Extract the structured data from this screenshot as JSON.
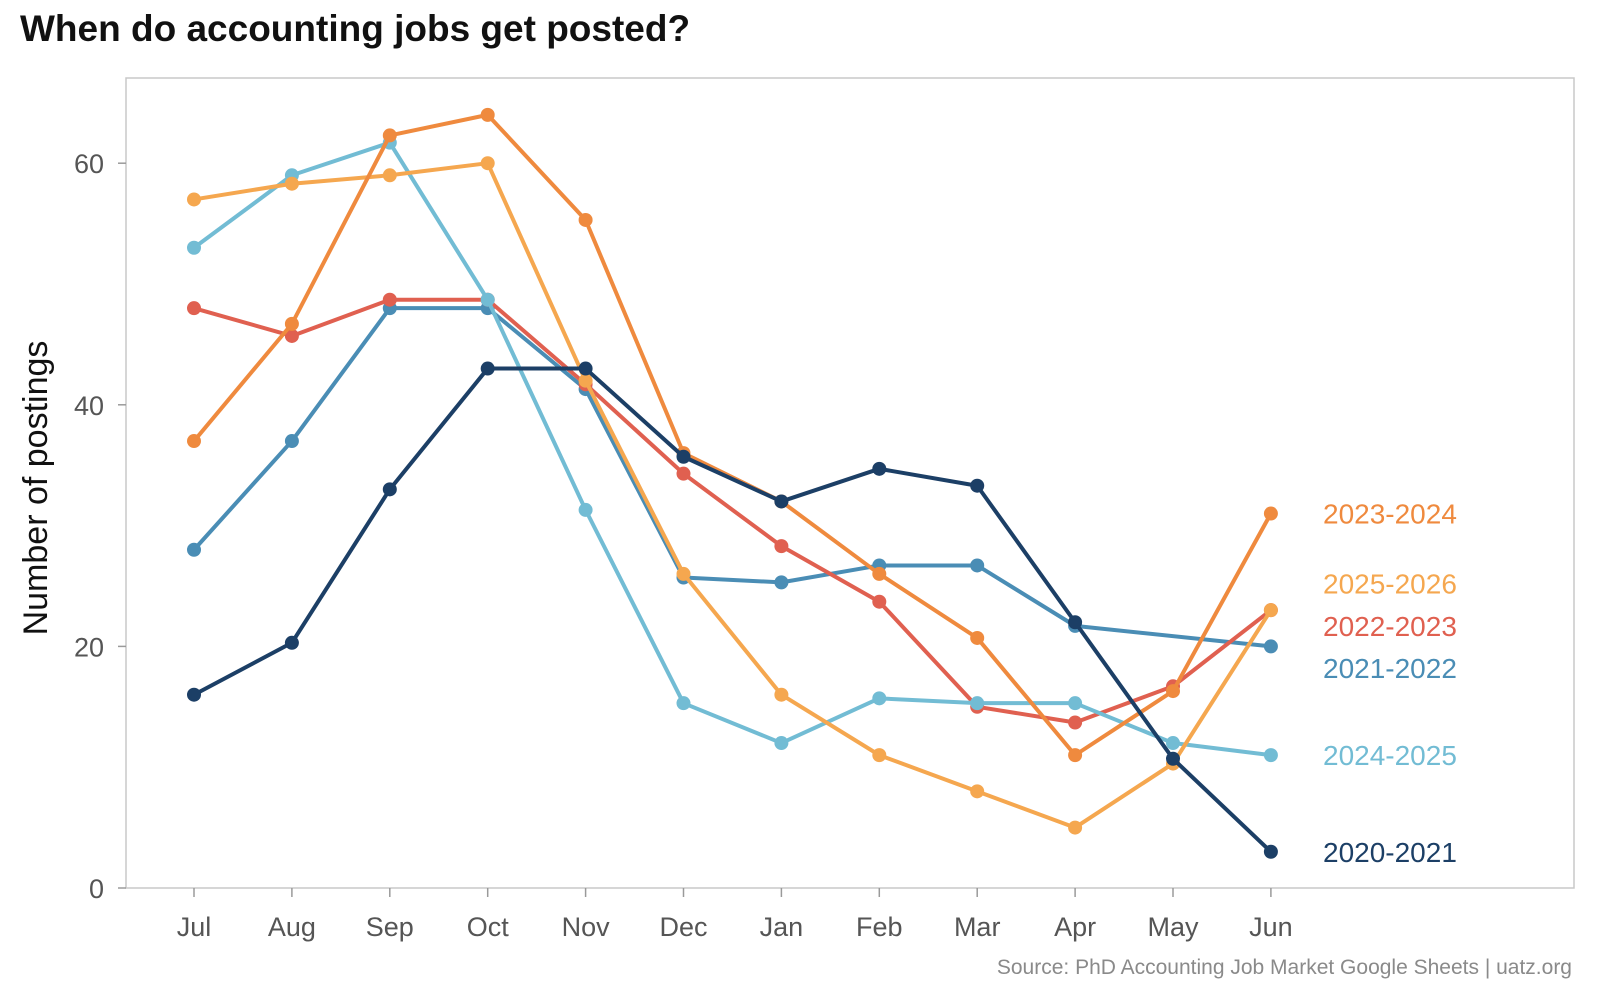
{
  "chart_data": {
    "type": "line",
    "title": "When do accounting jobs get posted?",
    "ylabel": "Number of postings",
    "xlabel": "",
    "source": "Source: PhD Accounting Job Market Google Sheets | uatz.org",
    "categories": [
      "Jul",
      "Aug",
      "Sep",
      "Oct",
      "Nov",
      "Dec",
      "Jan",
      "Feb",
      "Mar",
      "Apr",
      "May",
      "Jun"
    ],
    "yticks": [
      0,
      20,
      40,
      60
    ],
    "ylim": [
      0,
      67
    ],
    "grid": false,
    "legend": "direct labels at line ends (right)",
    "series": [
      {
        "name": "2021-2022",
        "color": "#4a8db5",
        "values": [
          28,
          37,
          48,
          48,
          41.3,
          25.7,
          25.3,
          26.7,
          26.7,
          21.7,
          null,
          20
        ]
      },
      {
        "name": "2022-2023",
        "color": "#e06050",
        "values": [
          48,
          45.7,
          48.7,
          48.7,
          41.7,
          34.3,
          28.3,
          23.7,
          15.0,
          13.7,
          16.7,
          23
        ]
      },
      {
        "name": "2024-2025",
        "color": "#72bcd4",
        "values": [
          53,
          59,
          61.7,
          48.7,
          31.3,
          15.3,
          12,
          15.7,
          15.3,
          15.3,
          12,
          11
        ]
      },
      {
        "name": "2025-2026",
        "color": "#f5a74f",
        "values": [
          57,
          58.3,
          59,
          60,
          42,
          26,
          16,
          11,
          8,
          5,
          10.3,
          23
        ]
      },
      {
        "name": "2023-2024",
        "color": "#ef8a3e",
        "values": [
          37,
          46.7,
          62.3,
          64,
          55.3,
          36,
          32,
          26,
          20.7,
          11,
          16.3,
          31
        ]
      },
      {
        "name": "2020-2021",
        "color": "#1c3f66",
        "values": [
          16,
          20.3,
          33,
          43,
          43,
          35.7,
          32,
          34.7,
          33.3,
          22,
          10.7,
          3
        ]
      }
    ],
    "end_labels": [
      {
        "text": "2023-2024",
        "color": "#ef8a3e",
        "y": 31
      },
      {
        "text": "2025-2026",
        "color": "#f5a74f",
        "y": 25.2
      },
      {
        "text": "2022-2023",
        "color": "#e06050",
        "y": 21.7
      },
      {
        "text": "2021-2022",
        "color": "#4a8db5",
        "y": 18.2
      },
      {
        "text": "2024-2025",
        "color": "#72bcd4",
        "y": 11
      },
      {
        "text": "2020-2021",
        "color": "#1c3f66",
        "y": 3
      }
    ]
  }
}
